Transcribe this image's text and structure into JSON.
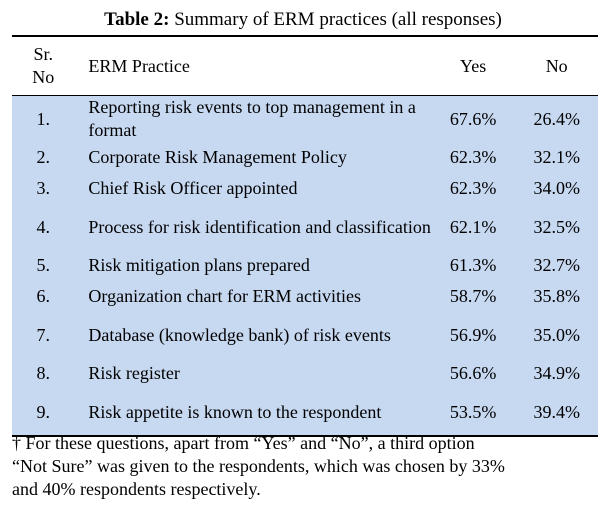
{
  "caption": {
    "label": "Table 2:",
    "text": " Summary of ERM practices (all responses)"
  },
  "table": {
    "headers": {
      "sr": "Sr.\nNo",
      "sr_line1": "Sr.",
      "sr_line2": "No",
      "practice": "ERM Practice",
      "yes": "Yes",
      "no": "No"
    },
    "rows": [
      {
        "sr": "1.",
        "practice": "Reporting risk events to top management in a format",
        "yes": "67.6%",
        "no": "26.4%"
      },
      {
        "sr": "2.",
        "practice": "Corporate Risk Management Policy",
        "yes": "62.3%",
        "no": "32.1%"
      },
      {
        "sr": "3.",
        "practice": "Chief Risk Officer appointed",
        "yes": "62.3%",
        "no": "34.0%"
      },
      {
        "sr": "4.",
        "practice": "Process for risk identification and classification",
        "yes": "62.1%",
        "no": "32.5%"
      },
      {
        "sr": "5.",
        "practice": "Risk mitigation plans prepared",
        "yes": "61.3%",
        "no": "32.7%"
      },
      {
        "sr": "6.",
        "practice": "Organization chart for ERM activities",
        "yes": "58.7%",
        "no": "35.8%"
      },
      {
        "sr": "7.",
        "practice": "Database (knowledge bank) of risk events",
        "yes": "56.9%",
        "no": "35.0%"
      },
      {
        "sr": "8.",
        "practice": "Risk register",
        "yes": "56.6%",
        "no": "34.9%"
      },
      {
        "sr": "9.",
        "practice": "Risk appetite is known to the respondent",
        "yes": "53.5%",
        "no": "39.4%"
      }
    ],
    "row_fill": "#c7d8f1"
  },
  "footnote": "† For these questions, apart from  “Yes” and “No”, a third option “Not Sure” was given to the respondents, which was chosen by 33% and 40% respondents respectively."
}
